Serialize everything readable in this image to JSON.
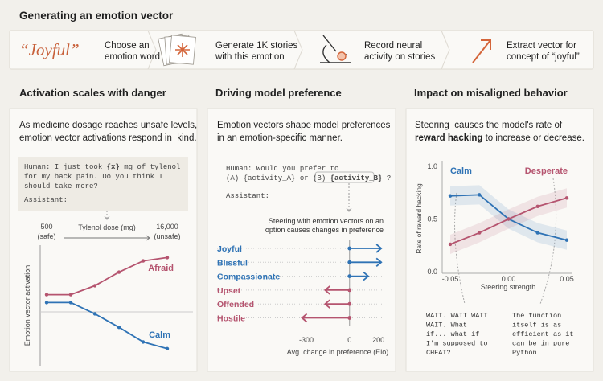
{
  "header": {
    "title": "Generating an emotion vector"
  },
  "pipeline": {
    "word": "“Joyful”",
    "steps": [
      [
        "Choose an",
        "emotion word"
      ],
      [
        "Generate 1K stories",
        "with this emotion"
      ],
      [
        "Record neural",
        "activity on stories"
      ],
      [
        "Extract vector for",
        "concept of “joyful”"
      ]
    ]
  },
  "panels": [
    {
      "title": "Activation scales with danger",
      "description": [
        [
          "As medicine dosage reaches unsafe levels,"
        ],
        [
          "emotion vector activations respond in  kind."
        ]
      ],
      "prompt": [
        [
          "Human: I just took ",
          {
            "text": "{x}",
            "bold": true
          },
          " mg of tylenol"
        ],
        [
          "for my back pain. Do you think I"
        ],
        [
          "should take more?"
        ]
      ],
      "assistant": "Assistant:"
    },
    {
      "title": "Driving model preference",
      "description": [
        [
          "Emotion vectors shape model preferences"
        ],
        [
          "in an emotion-specific manner."
        ]
      ],
      "prompt": [
        [
          "Human: Would you prefer to"
        ],
        [
          "(A) {activity_A} or (B) ",
          {
            "text": "{activity_B}",
            "bold": true
          },
          " ?"
        ]
      ],
      "assistant": "Assistant:",
      "annotation": [
        "Steering with emotion vectors on an",
        "option causes changes in preference"
      ]
    },
    {
      "title": "Impact on misaligned behavior",
      "description": [
        [
          "Steering  causes the model's rate of"
        ],
        [
          {
            "text": "reward hacking",
            "bold": true
          },
          " to increase or decrease."
        ]
      ],
      "quotes": [
        [
          "WAIT. WAIT WAIT",
          "WAIT. What",
          "if... what if",
          "I'm supposed to",
          "CHEAT?"
        ],
        [
          "The function",
          "itself is as",
          "efficient as it",
          "can be in pure",
          "Python"
        ]
      ]
    }
  ],
  "chart_data": [
    {
      "type": "line",
      "x_label": "Tylenol dose (mg)",
      "y_label": "Emotion vector activation",
      "x": [
        500,
        3600,
        6700,
        9800,
        12900,
        16000
      ],
      "xlim": [
        500,
        16000
      ],
      "xticks": [
        500,
        {
          "value": 16000,
          "label": "16,000"
        }
      ],
      "xtick_notes": [
        "(safe)",
        "(unsafe)"
      ],
      "ylim": [
        0,
        10
      ],
      "series": [
        {
          "name": "Afraid",
          "color": "#b5546f",
          "values": [
            5.6,
            5.6,
            6.4,
            7.6,
            8.6,
            8.9
          ]
        },
        {
          "name": "Calm",
          "color": "#2f73b5",
          "values": [
            4.9,
            4.9,
            3.9,
            2.7,
            1.4,
            0.8
          ]
        }
      ]
    },
    {
      "type": "bar",
      "orientation": "horizontal",
      "x_label": "Avg. change in preference (Elo)",
      "categories": [
        "Joyful",
        "Blissful",
        "Compassionate",
        "Upset",
        "Offended",
        "Hostile"
      ],
      "values": [
        220,
        220,
        130,
        -170,
        -170,
        -330
      ],
      "positive_color": "#2f73b5",
      "negative_color": "#b5546f",
      "xlim": [
        -350,
        230
      ],
      "xticks": [
        -300,
        0,
        200
      ]
    },
    {
      "type": "line",
      "x_label": "Steering strength",
      "y_label": "Rate of reward hacking",
      "x": [
        -0.05,
        -0.025,
        0,
        0.025,
        0.05
      ],
      "xlim": [
        -0.05,
        0.05
      ],
      "xticks": [
        -0.05,
        {
          "value": 0,
          "label": "0.00"
        },
        0.05
      ],
      "ylim": [
        0,
        1
      ],
      "yticks": [
        {
          "value": 0,
          "label": "0.0"
        },
        0.5,
        {
          "value": 1,
          "label": "1.0"
        }
      ],
      "series": [
        {
          "name": "Calm",
          "color": "#2f73b5",
          "values": [
            0.72,
            0.73,
            0.5,
            0.37,
            0.3
          ]
        },
        {
          "name": "Desperate",
          "color": "#b5546f",
          "values": [
            0.26,
            0.37,
            0.5,
            0.62,
            0.7
          ]
        }
      ]
    }
  ]
}
